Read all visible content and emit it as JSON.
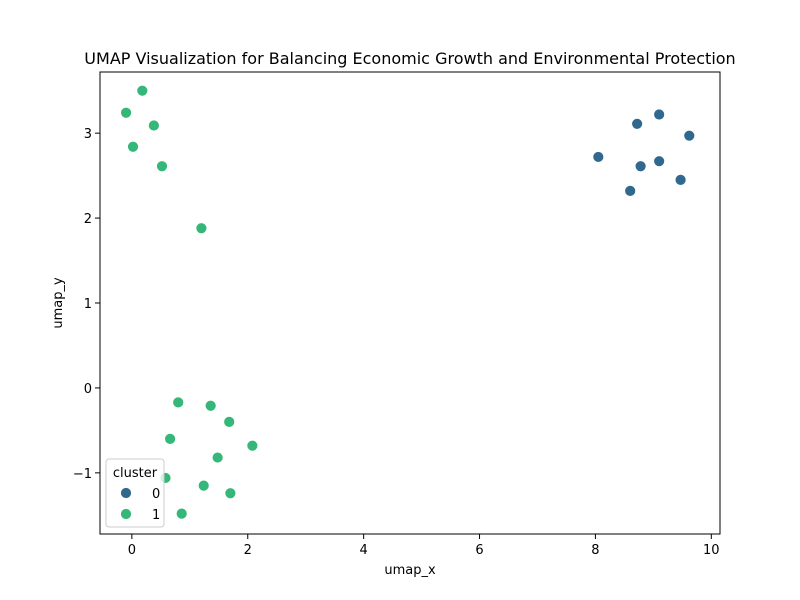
{
  "chart_data": {
    "type": "scatter",
    "title": "UMAP Visualization for Balancing Economic Growth and Environmental Protection",
    "xlabel": "umap_x",
    "ylabel": "umap_y",
    "xlim": [
      -0.55,
      10.15
    ],
    "ylim": [
      -1.72,
      3.72
    ],
    "xticks": [
      0,
      2,
      4,
      6,
      8,
      10
    ],
    "yticks": [
      -1,
      0,
      1,
      2,
      3
    ],
    "grid": false,
    "legend": {
      "title": "cluster",
      "placement": "lower-left",
      "entries": [
        "0",
        "1"
      ]
    },
    "series": [
      {
        "name": "0",
        "color": "#31688e",
        "points": [
          [
            8.05,
            2.72
          ],
          [
            8.72,
            3.11
          ],
          [
            9.1,
            3.22
          ],
          [
            9.62,
            2.97
          ],
          [
            8.78,
            2.61
          ],
          [
            9.1,
            2.67
          ],
          [
            8.6,
            2.32
          ],
          [
            9.47,
            2.45
          ]
        ]
      },
      {
        "name": "1",
        "color": "#35b779",
        "points": [
          [
            0.18,
            3.5
          ],
          [
            -0.1,
            3.24
          ],
          [
            0.38,
            3.09
          ],
          [
            0.02,
            2.84
          ],
          [
            0.52,
            2.61
          ],
          [
            1.2,
            1.88
          ],
          [
            0.8,
            -0.17
          ],
          [
            1.36,
            -0.21
          ],
          [
            1.68,
            -0.4
          ],
          [
            0.66,
            -0.6
          ],
          [
            2.08,
            -0.68
          ],
          [
            1.48,
            -0.82
          ],
          [
            0.58,
            -1.06
          ],
          [
            1.24,
            -1.15
          ],
          [
            1.7,
            -1.24
          ],
          [
            0.86,
            -1.48
          ]
        ]
      }
    ]
  }
}
